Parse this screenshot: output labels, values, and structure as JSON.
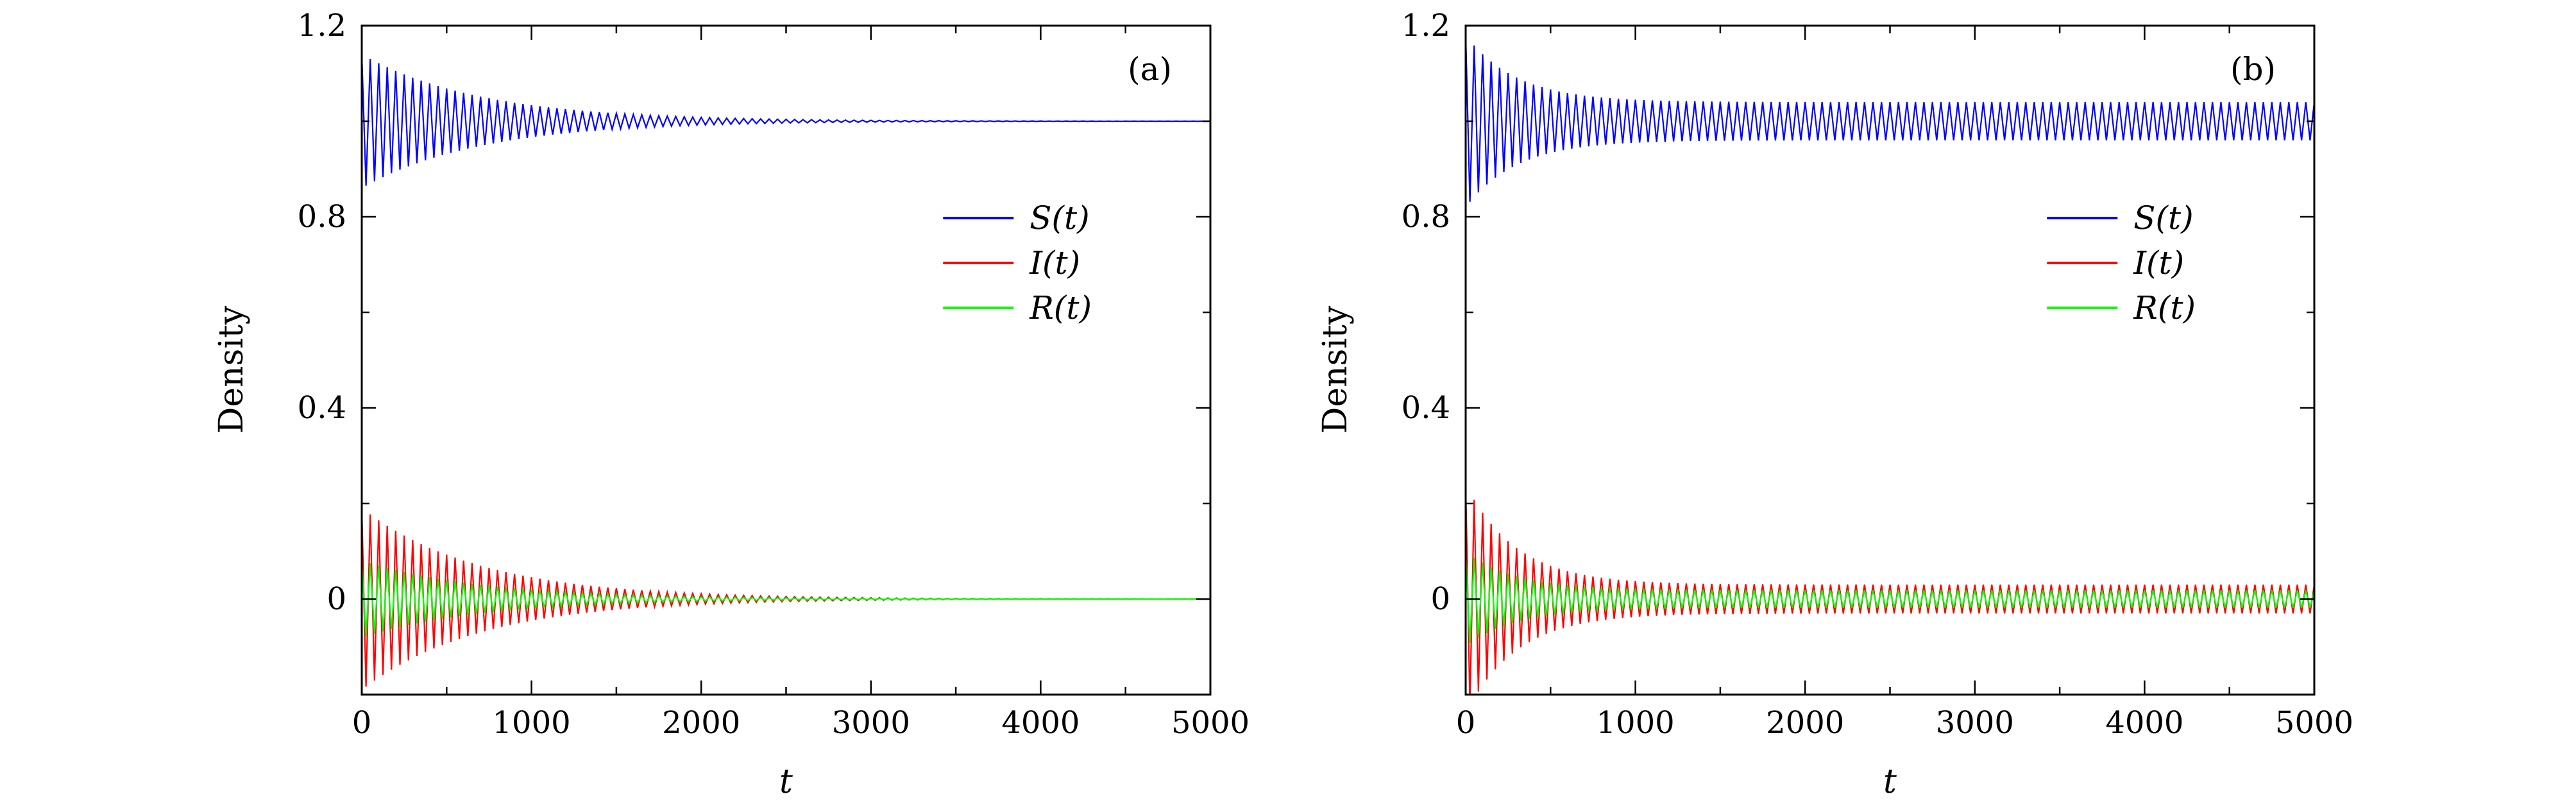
{
  "chart_data": [
    {
      "type": "line",
      "panel_label": "(a)",
      "title": "",
      "xlabel": "t",
      "ylabel": "Density",
      "xlim": [
        0,
        5000
      ],
      "ylim": [
        -0.2,
        1.2
      ],
      "xticks": [
        0,
        1000,
        2000,
        3000,
        4000,
        5000
      ],
      "xtick_labels": [
        "0",
        "1000",
        "2000",
        "3000",
        "4000",
        "5000"
      ],
      "yticks": [
        0,
        0.4,
        0.8,
        1.2
      ],
      "ytick_labels": [
        "0",
        "0.4",
        "0.8",
        "1.2"
      ],
      "grid": false,
      "legend_position": "center-right",
      "series": [
        {
          "name": "S(t)",
          "color": "#0000ff",
          "mean": 1.0,
          "initial_amplitude": 0.14,
          "decay_time": 700,
          "persistent_amplitude": 0.0,
          "period": 50
        },
        {
          "name": "I(t)",
          "color": "#ff0000",
          "mean": 0.0,
          "initial_amplitude": 0.19,
          "decay_time": 700,
          "persistent_amplitude": 0.0,
          "period": 50
        },
        {
          "name": "R(t)",
          "color": "#00ff00",
          "mean": 0.0,
          "initial_amplitude": 0.09,
          "decay_time": 700,
          "persistent_amplitude": 0.0,
          "period": 50
        }
      ]
    },
    {
      "type": "line",
      "panel_label": "(b)",
      "title": "",
      "xlabel": "t",
      "ylabel": "Density",
      "xlim": [
        0,
        5000
      ],
      "ylim": [
        -0.2,
        1.2
      ],
      "xticks": [
        0,
        1000,
        2000,
        3000,
        4000,
        5000
      ],
      "xtick_labels": [
        "0",
        "1000",
        "2000",
        "3000",
        "4000",
        "5000"
      ],
      "yticks": [
        0,
        0.4,
        0.8,
        1.2
      ],
      "ytick_labels": [
        "0",
        "0.4",
        "0.8",
        "1.2"
      ],
      "grid": false,
      "legend_position": "center-right",
      "series": [
        {
          "name": "S(t)",
          "color": "#0000ff",
          "mean": 1.0,
          "initial_amplitude": 0.14,
          "decay_time": 300,
          "persistent_amplitude": 0.04,
          "period": 50
        },
        {
          "name": "I(t)",
          "color": "#ff0000",
          "mean": 0.0,
          "initial_amplitude": 0.21,
          "decay_time": 300,
          "persistent_amplitude": 0.03,
          "period": 50
        },
        {
          "name": "R(t)",
          "color": "#00ff00",
          "mean": 0.0,
          "initial_amplitude": 0.09,
          "decay_time": 300,
          "persistent_amplitude": 0.02,
          "period": 50
        }
      ]
    }
  ]
}
